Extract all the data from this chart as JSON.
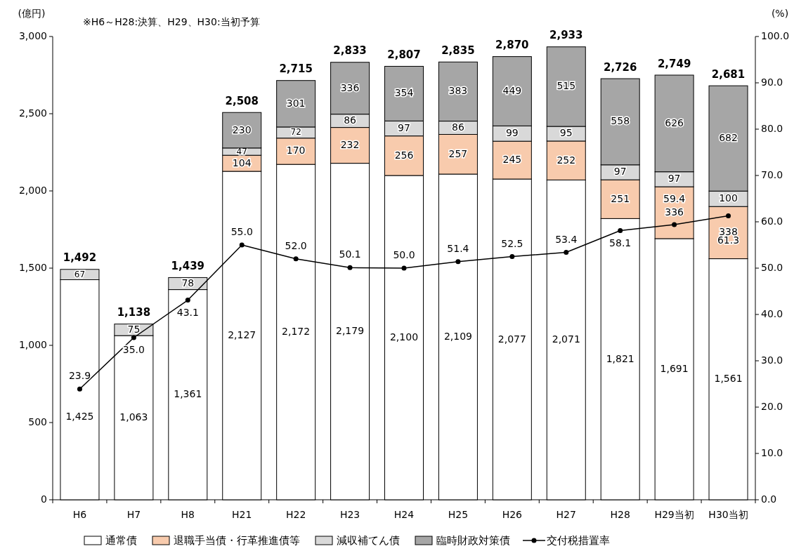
{
  "chart_data": {
    "type": "bar",
    "stacked": true,
    "legend": "bottom",
    "grid": false,
    "ylabel": "(億円)",
    "y2label": "(%)",
    "annotations": [
      "※H6～H28:決算、H29、H30:当初予算"
    ],
    "categories": [
      "H6",
      "H7",
      "H8",
      "H21",
      "H22",
      "H23",
      "H24",
      "H25",
      "H26",
      "H27",
      "H28",
      "H29当初",
      "H30当初"
    ],
    "ylim": [
      0,
      3000
    ],
    "yticks": [
      0,
      500,
      {
        "value": 1000,
        "label": "1,000"
      },
      {
        "value": 1500,
        "label": "1,500"
      },
      {
        "value": 2000,
        "label": "2,000"
      },
      {
        "value": 2500,
        "label": "2,500"
      },
      {
        "value": 3000,
        "label": "3,000"
      }
    ],
    "y2lim": [
      0,
      100
    ],
    "y2ticks": [
      {
        "value": 0,
        "label": "0.0"
      },
      {
        "value": 10,
        "label": "10.0"
      },
      {
        "value": 20,
        "label": "20.0"
      },
      {
        "value": 30,
        "label": "30.0"
      },
      {
        "value": 40,
        "label": "40.0"
      },
      {
        "value": 50,
        "label": "50.0"
      },
      {
        "value": 60,
        "label": "60.0"
      },
      {
        "value": 70,
        "label": "70.0"
      },
      {
        "value": 80,
        "label": "80.0"
      },
      {
        "value": 90,
        "label": "90.0"
      },
      {
        "value": 100,
        "label": "100.0"
      }
    ],
    "series": [
      {
        "name": "通常債",
        "color": "#ffffff",
        "values": [
          1425,
          1063,
          1361,
          2127,
          2172,
          2179,
          2100,
          2109,
          2077,
          2071,
          1821,
          1691,
          1561
        ],
        "value_labels": [
          "1,425",
          "1,063",
          "1,361",
          "2,127",
          "2,172",
          "2,179",
          "2,100",
          "2,109",
          "2,077",
          "2,071",
          "1,821",
          "1,691",
          "1,561"
        ]
      },
      {
        "name": "退職手当債・行革推進債等",
        "color": "#f8cbad",
        "values": [
          null,
          null,
          null,
          104,
          170,
          232,
          256,
          257,
          245,
          252,
          251,
          336,
          338
        ],
        "value_labels": [
          null,
          null,
          null,
          "104",
          "170",
          "232",
          "256",
          "257",
          "245",
          "252",
          "251",
          "336",
          "338"
        ]
      },
      {
        "name": "減収補てん債",
        "color": "#d9d9d9",
        "values": [
          67,
          75,
          78,
          47,
          72,
          86,
          97,
          86,
          99,
          95,
          97,
          97,
          100
        ],
        "value_labels": [
          "67",
          "75",
          "78",
          "47",
          "72",
          "86",
          "97",
          "86",
          "99",
          "95",
          "97",
          "97",
          "100"
        ]
      },
      {
        "name": "臨時財政対策債",
        "color": "#a6a6a6",
        "values": [
          null,
          null,
          null,
          230,
          301,
          336,
          354,
          383,
          449,
          515,
          558,
          626,
          682
        ],
        "value_labels": [
          null,
          null,
          null,
          "230",
          "301",
          "336",
          "354",
          "383",
          "449",
          "515",
          "558",
          "626",
          "682"
        ]
      },
      {
        "name": "交付税措置率",
        "type": "line",
        "axis": "y2",
        "color": "#000000",
        "marker": "circle",
        "values": [
          23.9,
          35.0,
          43.1,
          55.0,
          52.0,
          50.1,
          50.0,
          51.4,
          52.5,
          53.4,
          58.1,
          59.4,
          61.3
        ],
        "value_labels": [
          "23.9",
          "35.0",
          "43.1",
          "55.0",
          "52.0",
          "50.1",
          "50.0",
          "51.4",
          "52.5",
          "53.4",
          "58.1",
          "59.4",
          "61.3"
        ]
      }
    ],
    "totals": [
      "1,492",
      "1,138",
      "1,439",
      "2,508",
      "2,715",
      "2,833",
      "2,807",
      "2,835",
      "2,870",
      "2,933",
      "2,726",
      "2,749",
      "2,681"
    ]
  }
}
